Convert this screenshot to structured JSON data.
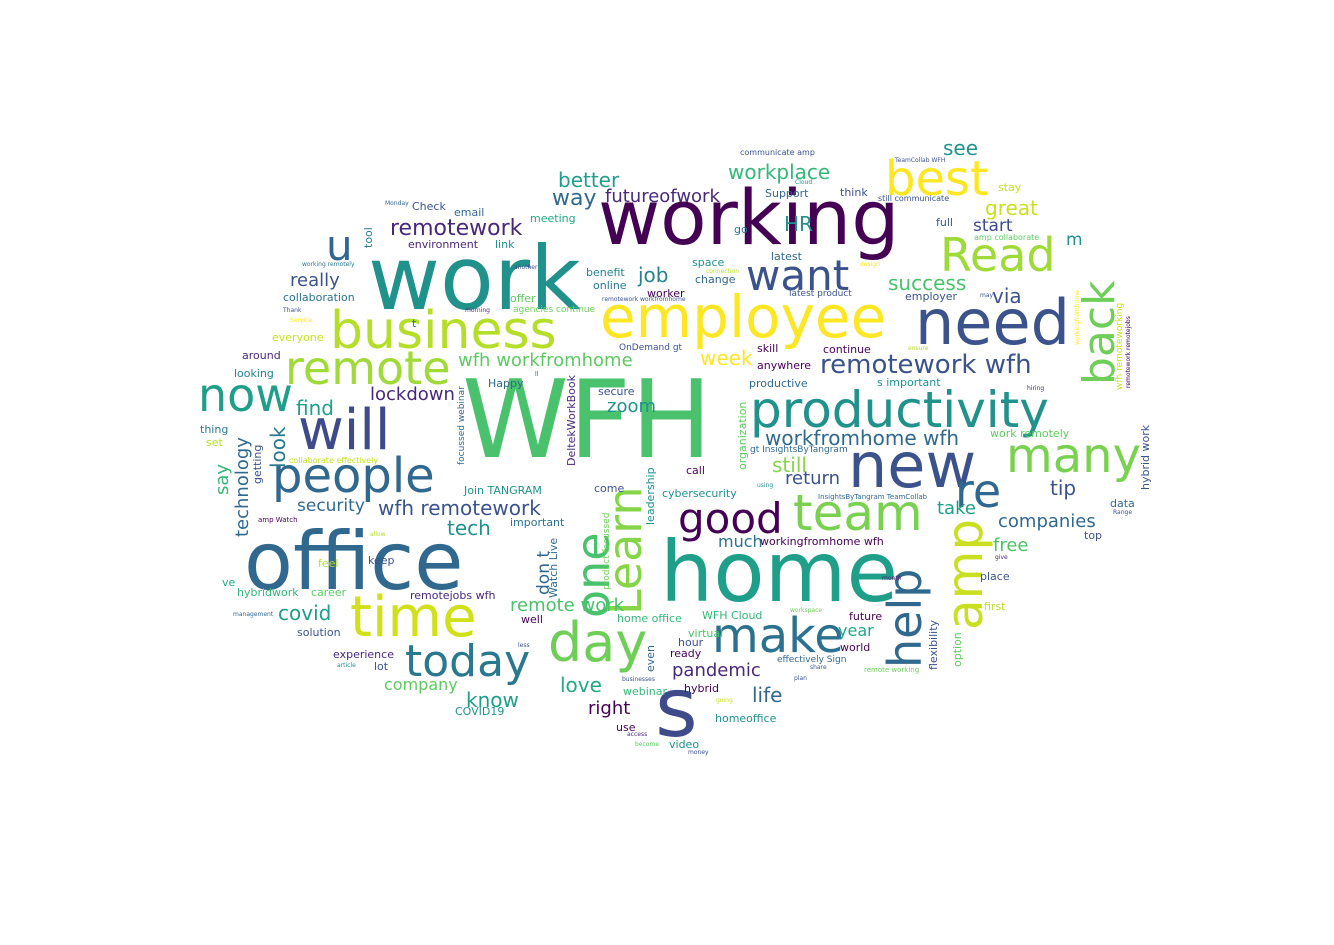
{
  "palette": {
    "dark_purple": "#440154",
    "indigo": "#3b528b",
    "blue": "#31688e",
    "teal": "#21918c",
    "green_teal": "#1fa187",
    "green": "#5ec962",
    "lime": "#a0da39",
    "yellow_green": "#c8e020",
    "yellow": "#fde725"
  },
  "words": [
    {
      "text": "WFH",
      "color": "#4ac16d"
    },
    {
      "text": "work",
      "color": "#21918c"
    },
    {
      "text": "working",
      "color": "#440154"
    },
    {
      "text": "office",
      "color": "#31688e"
    },
    {
      "text": "home",
      "color": "#1f9e89"
    },
    {
      "text": "employee",
      "color": "#fde725"
    },
    {
      "text": "need",
      "color": "#3b528b"
    },
    {
      "text": "business",
      "color": "#b5de2b"
    },
    {
      "text": "productivity",
      "color": "#21918c"
    },
    {
      "text": "new",
      "color": "#3b528b"
    },
    {
      "text": "people",
      "color": "#31688e"
    },
    {
      "text": "will",
      "color": "#3e4a89"
    },
    {
      "text": "time",
      "color": "#d0e11c"
    },
    {
      "text": "today",
      "color": "#2a788e"
    },
    {
      "text": "day",
      "color": "#6ece58"
    },
    {
      "text": "make",
      "color": "#2c728e"
    },
    {
      "text": "team",
      "color": "#7ad151"
    },
    {
      "text": "good",
      "color": "#440154"
    },
    {
      "text": "best",
      "color": "#fde725"
    },
    {
      "text": "Read",
      "color": "#a0da39"
    },
    {
      "text": "remote",
      "color": "#a0da39"
    },
    {
      "text": "want",
      "color": "#3b528b"
    },
    {
      "text": "now",
      "color": "#1f9e89"
    },
    {
      "text": "many",
      "color": "#7ad151"
    },
    {
      "text": "re",
      "color": "#31688e"
    },
    {
      "text": "u",
      "color": "#31688e"
    },
    {
      "text": "s",
      "color": "#3e4a89"
    },
    {
      "text": "one",
      "color": "#4ac16d"
    },
    {
      "text": "Learn",
      "color": "#86d549"
    },
    {
      "text": "amp",
      "color": "#c8e020"
    },
    {
      "text": "help",
      "color": "#31688e"
    },
    {
      "text": "back",
      "color": "#6ece58"
    },
    {
      "text": "remotework wfh",
      "color": "#3b528b"
    },
    {
      "text": "workfromhome wfh",
      "color": "#31688e"
    },
    {
      "text": "wfh workfromhome",
      "color": "#5ec962"
    },
    {
      "text": "remotework",
      "color": "#482878"
    },
    {
      "text": "wfh remotework",
      "color": "#3b528b"
    },
    {
      "text": "workplace",
      "color": "#35b779"
    },
    {
      "text": "futureofwork",
      "color": "#482878"
    },
    {
      "text": "better",
      "color": "#1f9e89"
    },
    {
      "text": "way",
      "color": "#31688e"
    },
    {
      "text": "great",
      "color": "#c8e020"
    },
    {
      "text": "success",
      "color": "#4ac16d"
    },
    {
      "text": "see",
      "color": "#21918c"
    },
    {
      "text": "start",
      "color": "#3e4a89"
    },
    {
      "text": "HR",
      "color": "#21918c"
    },
    {
      "text": "job",
      "color": "#26828e"
    },
    {
      "text": "via",
      "color": "#3b528b"
    },
    {
      "text": "m",
      "color": "#21918c"
    },
    {
      "text": "week",
      "color": "#fde725"
    },
    {
      "text": "find",
      "color": "#1f9e89"
    },
    {
      "text": "really",
      "color": "#3b528b"
    },
    {
      "text": "lockdown",
      "color": "#482878"
    },
    {
      "text": "security",
      "color": "#31688e"
    },
    {
      "text": "look",
      "color": "#2a788e"
    },
    {
      "text": "say",
      "color": "#35b779"
    },
    {
      "text": "technology",
      "color": "#31688e"
    },
    {
      "text": "zoom",
      "color": "#21918c"
    },
    {
      "text": "still",
      "color": "#86d549"
    },
    {
      "text": "return",
      "color": "#3b528b"
    },
    {
      "text": "tip",
      "color": "#3b528b"
    },
    {
      "text": "take",
      "color": "#1f9e89"
    },
    {
      "text": "companies",
      "color": "#31688e"
    },
    {
      "text": "free",
      "color": "#4ac16d"
    },
    {
      "text": "tech",
      "color": "#21918c"
    },
    {
      "text": "don t",
      "color": "#31688e"
    },
    {
      "text": "remote work",
      "color": "#4ac16d"
    },
    {
      "text": "covid",
      "color": "#1f9e89"
    },
    {
      "text": "much",
      "color": "#2c728e"
    },
    {
      "text": "pandemic",
      "color": "#482878"
    },
    {
      "text": "year",
      "color": "#22a884"
    },
    {
      "text": "life",
      "color": "#31688e"
    },
    {
      "text": "love",
      "color": "#22a884"
    },
    {
      "text": "right",
      "color": "#440154"
    },
    {
      "text": "know",
      "color": "#1f9e89"
    },
    {
      "text": "company",
      "color": "#5ec962"
    },
    {
      "text": "workingfromhome wfh",
      "color": "#440154"
    },
    {
      "text": "collaboration",
      "color": "#2c728e"
    },
    {
      "text": "everyone",
      "color": "#c8e020"
    },
    {
      "text": "around",
      "color": "#482878"
    },
    {
      "text": "looking",
      "color": "#26828e"
    },
    {
      "text": "thing",
      "color": "#2a788e"
    },
    {
      "text": "set",
      "color": "#b5de2b"
    },
    {
      "text": "getting",
      "color": "#3b528b"
    },
    {
      "text": "environment",
      "color": "#482878"
    },
    {
      "text": "email",
      "color": "#31688e"
    },
    {
      "text": "link",
      "color": "#21918c"
    },
    {
      "text": "meeting",
      "color": "#22a884"
    },
    {
      "text": "Check",
      "color": "#3b528b"
    },
    {
      "text": "tool",
      "color": "#2a788e"
    },
    {
      "text": "benefit",
      "color": "#26828e"
    },
    {
      "text": "online",
      "color": "#2a788e"
    },
    {
      "text": "offer",
      "color": "#5ec962"
    },
    {
      "text": "agencies continue",
      "color": "#6ece58"
    },
    {
      "text": "space",
      "color": "#21918c"
    },
    {
      "text": "change",
      "color": "#31688e"
    },
    {
      "text": "worker",
      "color": "#440154"
    },
    {
      "text": "latest",
      "color": "#31688e"
    },
    {
      "text": "latest product",
      "color": "#3b528b"
    },
    {
      "text": "employer",
      "color": "#3b528b"
    },
    {
      "text": "full",
      "color": "#3b528b"
    },
    {
      "text": "think",
      "color": "#3b528b"
    },
    {
      "text": "go",
      "color": "#2a788e"
    },
    {
      "text": "Support",
      "color": "#31688e"
    },
    {
      "text": "stay",
      "color": "#c8e020"
    },
    {
      "text": "skill",
      "color": "#440154"
    },
    {
      "text": "continue",
      "color": "#440154"
    },
    {
      "text": "anywhere",
      "color": "#440154"
    },
    {
      "text": "productive",
      "color": "#31688e"
    },
    {
      "text": "s important",
      "color": "#21918c"
    },
    {
      "text": "work remotely",
      "color": "#5ec962"
    },
    {
      "text": "hybrid work",
      "color": "#3b528b"
    },
    {
      "text": "secure",
      "color": "#3b528b"
    },
    {
      "text": "Happy",
      "color": "#31688e"
    },
    {
      "text": "DeltekWorkBook",
      "color": "#482878"
    },
    {
      "text": "focussed webinar",
      "color": "#31688e"
    },
    {
      "text": "Join TANGRAM",
      "color": "#21918c"
    },
    {
      "text": "important",
      "color": "#2c728e"
    },
    {
      "text": "cybersecurity",
      "color": "#21918c"
    },
    {
      "text": "call",
      "color": "#440154"
    },
    {
      "text": "come",
      "color": "#3b528b"
    },
    {
      "text": "leadership",
      "color": "#21918c"
    },
    {
      "text": "organization",
      "color": "#5ec962"
    },
    {
      "text": "gt InsightsByTangram",
      "color": "#31688e"
    },
    {
      "text": "Watch Live",
      "color": "#31688e"
    },
    {
      "text": "product focussed",
      "color": "#6ece58"
    },
    {
      "text": "keep",
      "color": "#3b528b"
    },
    {
      "text": "feel",
      "color": "#b5de2b"
    },
    {
      "text": "career",
      "color": "#5ec962"
    },
    {
      "text": "hybridwork",
      "color": "#35b779"
    },
    {
      "text": "ve",
      "color": "#22a884"
    },
    {
      "text": "remotejobs wfh",
      "color": "#482878"
    },
    {
      "text": "solution",
      "color": "#3b528b"
    },
    {
      "text": "experience",
      "color": "#482878"
    },
    {
      "text": "lot",
      "color": "#3b528b"
    },
    {
      "text": "home office",
      "color": "#35b779"
    },
    {
      "text": "well",
      "color": "#440154"
    },
    {
      "text": "WFH Cloud",
      "color": "#35b779"
    },
    {
      "text": "virtual",
      "color": "#4ac16d"
    },
    {
      "text": "hour",
      "color": "#3b528b"
    },
    {
      "text": "ready",
      "color": "#440154"
    },
    {
      "text": "hybrid",
      "color": "#440154"
    },
    {
      "text": "even",
      "color": "#31688e"
    },
    {
      "text": "webinar",
      "color": "#35b779"
    },
    {
      "text": "homeoffice",
      "color": "#21918c"
    },
    {
      "text": "use",
      "color": "#440154"
    },
    {
      "text": "video",
      "color": "#21918c"
    },
    {
      "text": "COVID19",
      "color": "#21918c"
    },
    {
      "text": "future",
      "color": "#440154"
    },
    {
      "text": "world",
      "color": "#440154"
    },
    {
      "text": "flexibility",
      "color": "#3b528b"
    },
    {
      "text": "option",
      "color": "#5ec962"
    },
    {
      "text": "place",
      "color": "#3b528b"
    },
    {
      "text": "first",
      "color": "#b5de2b"
    },
    {
      "text": "data",
      "color": "#31688e"
    },
    {
      "text": "top",
      "color": "#3b528b"
    },
    {
      "text": "effectively Sign",
      "color": "#31688e"
    },
    {
      "text": "OnDemand gt",
      "color": "#3b528b"
    },
    {
      "text": "communicate amp",
      "color": "#3b528b"
    },
    {
      "text": "still communicate",
      "color": "#3b528b"
    },
    {
      "text": "amp collaborate",
      "color": "#5ec962"
    },
    {
      "text": "TeamCollab WFH",
      "color": "#3b528b"
    },
    {
      "text": "InsightsByTangram TeamCollab",
      "color": "#31688e"
    },
    {
      "text": "remotework workfromhome",
      "color": "#3b528b"
    },
    {
      "text": "Range",
      "color": "#3b528b"
    },
    {
      "text": "remotework remotejobs",
      "color": "#440154"
    },
    {
      "text": "wfh remoteworking",
      "color": "#c8e020"
    },
    {
      "text": "workingfromhome",
      "color": "#fde725"
    },
    {
      "text": "collaborate effectively",
      "color": "#c8e020"
    },
    {
      "text": "working remotely",
      "color": "#2a788e"
    },
    {
      "text": "amp Watch",
      "color": "#440154"
    },
    {
      "text": "management",
      "color": "#31688e"
    },
    {
      "text": "Monday",
      "color": "#31688e"
    },
    {
      "text": "Thank",
      "color": "#3b528b"
    },
    {
      "text": "Service",
      "color": "#fde725"
    },
    {
      "text": "another",
      "color": "#3b528b"
    },
    {
      "text": "morning",
      "color": "#482878"
    },
    {
      "text": "design",
      "color": "#fde725"
    },
    {
      "text": "may",
      "color": "#3b528b"
    },
    {
      "text": "hiring",
      "color": "#482878"
    },
    {
      "text": "ensure",
      "color": "#b5de2b"
    },
    {
      "text": "using",
      "color": "#21918c"
    },
    {
      "text": "give",
      "color": "#482878"
    },
    {
      "text": "month",
      "color": "#482878"
    },
    {
      "text": "workspace",
      "color": "#6ece58"
    },
    {
      "text": "remote working",
      "color": "#6ece58"
    },
    {
      "text": "share",
      "color": "#3b528b"
    },
    {
      "text": "plan",
      "color": "#3b528b"
    },
    {
      "text": "less",
      "color": "#3b528b"
    },
    {
      "text": "article",
      "color": "#21918c"
    },
    {
      "text": "businesses",
      "color": "#3b528b"
    },
    {
      "text": "access",
      "color": "#482878"
    },
    {
      "text": "become",
      "color": "#5ec962"
    },
    {
      "text": "going",
      "color": "#c8e020"
    },
    {
      "text": "money",
      "color": "#3b528b"
    },
    {
      "text": "Cloud",
      "color": "#21918c"
    },
    {
      "text": "ll",
      "color": "#3b528b"
    },
    {
      "text": "t",
      "color": "#31688e"
    },
    {
      "text": "connection",
      "color": "#b5de2b"
    },
    {
      "text": "allow",
      "color": "#b5de2b"
    }
  ]
}
